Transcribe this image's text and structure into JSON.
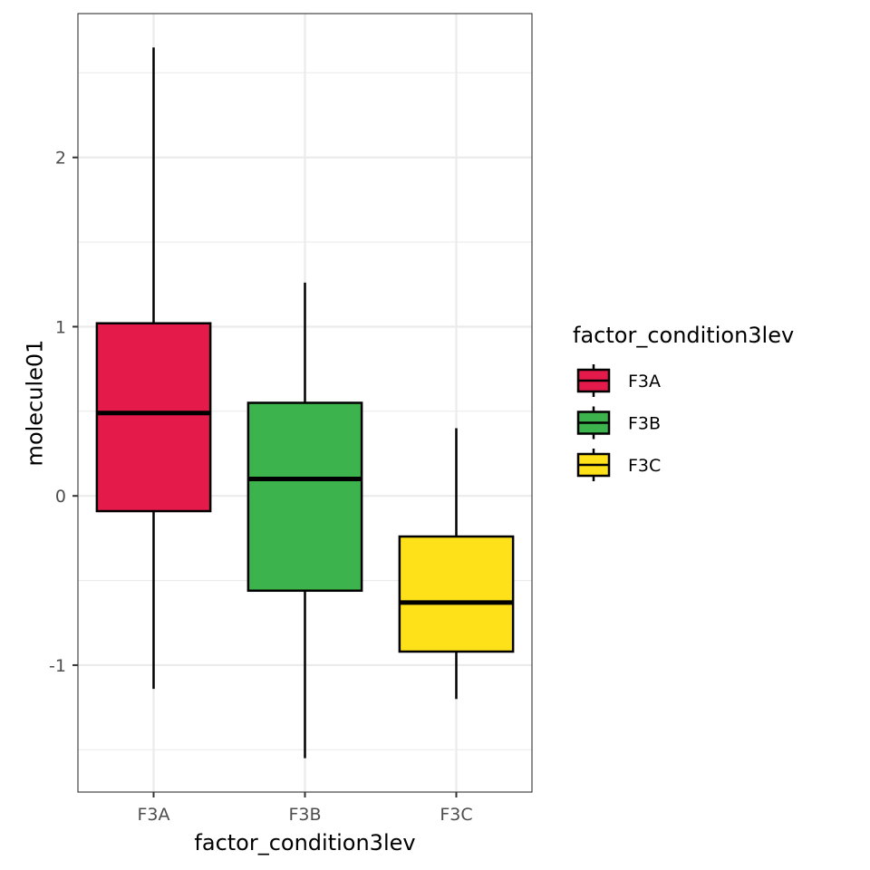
{
  "chart_data": {
    "type": "box",
    "xlabel": "factor_condition3lev",
    "ylabel": "molecule01",
    "ylim": [
      -1.75,
      2.85
    ],
    "y_ticks": [
      -1,
      0,
      1,
      2
    ],
    "y_tick_labels": [
      "-1",
      "0",
      "1",
      "2"
    ],
    "grid": true,
    "legend": {
      "title": "factor_condition3lev",
      "placement": "right",
      "entries": [
        "F3A",
        "F3B",
        "F3C"
      ]
    },
    "categories": [
      "F3A",
      "F3B",
      "F3C"
    ],
    "series": [
      {
        "category": "F3A",
        "color": "#E41A4A",
        "min": -1.14,
        "q1": -0.09,
        "median": 0.49,
        "q3": 1.02,
        "max": 2.65
      },
      {
        "category": "F3B",
        "color": "#3DB34D",
        "min": -1.55,
        "q1": -0.56,
        "median": 0.1,
        "q3": 0.55,
        "max": 1.26
      },
      {
        "category": "F3C",
        "color": "#FFE119",
        "min": -1.2,
        "q1": -0.92,
        "median": -0.63,
        "q3": -0.24,
        "max": 0.4
      }
    ]
  }
}
